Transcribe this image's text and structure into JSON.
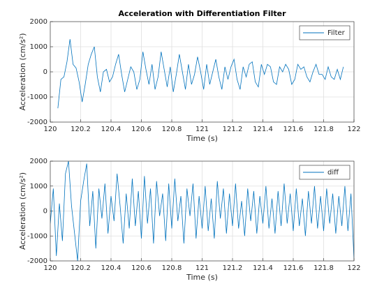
{
  "chart_data": [
    {
      "type": "line",
      "title": "Acceleration with Differentiation Filter",
      "xlabel": "Time (s)",
      "ylabel": "Acceleration (cm/s²)",
      "x": [
        120.05,
        120.07,
        120.09,
        120.11,
        120.13,
        120.15,
        120.17,
        120.19,
        120.21,
        120.23,
        120.25,
        120.27,
        120.29,
        120.31,
        120.33,
        120.35,
        120.37,
        120.39,
        120.41,
        120.43,
        120.45,
        120.47,
        120.49,
        120.51,
        120.53,
        120.55,
        120.57,
        120.59,
        120.61,
        120.63,
        120.65,
        120.67,
        120.69,
        120.71,
        120.73,
        120.75,
        120.77,
        120.79,
        120.81,
        120.83,
        120.85,
        120.87,
        120.89,
        120.91,
        120.93,
        120.95,
        120.97,
        120.99,
        121.01,
        121.03,
        121.05,
        121.07,
        121.09,
        121.11,
        121.13,
        121.15,
        121.17,
        121.19,
        121.21,
        121.23,
        121.25,
        121.27,
        121.29,
        121.31,
        121.33,
        121.35,
        121.37,
        121.39,
        121.41,
        121.43,
        121.45,
        121.47,
        121.49,
        121.51,
        121.53,
        121.55,
        121.57,
        121.59,
        121.61,
        121.63,
        121.65,
        121.67,
        121.69,
        121.71,
        121.73,
        121.75,
        121.77,
        121.79,
        121.81,
        121.83,
        121.85,
        121.87,
        121.89,
        121.91,
        121.93
      ],
      "series": [
        {
          "name": "Filter",
          "color": "#0072bd",
          "values": [
            -1450,
            -300,
            -200,
            400,
            1300,
            300,
            150,
            -400,
            -1200,
            -500,
            300,
            700,
            1000,
            -200,
            -800,
            0,
            100,
            -400,
            -200,
            300,
            700,
            -100,
            -800,
            -300,
            200,
            0,
            -700,
            -300,
            800,
            100,
            -500,
            300,
            -700,
            -200,
            800,
            100,
            -600,
            200,
            -800,
            -100,
            700,
            0,
            -700,
            300,
            -500,
            -100,
            600,
            0,
            -700,
            300,
            -500,
            0,
            500,
            -200,
            -700,
            200,
            -300,
            200,
            500,
            -300,
            -700,
            200,
            -200,
            300,
            400,
            -400,
            -600,
            300,
            -100,
            300,
            200,
            -400,
            -500,
            200,
            0,
            300,
            100,
            -500,
            -300,
            300,
            100,
            200,
            -200,
            -400,
            0,
            300,
            -100,
            -100,
            -300,
            200,
            -200,
            -300,
            100,
            -300,
            200
          ]
        }
      ],
      "xlim": [
        120,
        122
      ],
      "xticks": [
        120,
        120.2,
        120.4,
        120.6,
        120.8,
        121,
        121.2,
        121.4,
        121.6,
        121.8,
        122
      ],
      "ylim": [
        -2000,
        2000
      ],
      "yticks": [
        -2000,
        -1000,
        0,
        1000,
        2000
      ],
      "grid": true,
      "legend": "northeast"
    },
    {
      "type": "line",
      "xlabel": "Time (s)",
      "ylabel": "Acceleration (cm/s²)",
      "x": [
        120,
        120.02,
        120.04,
        120.06,
        120.08,
        120.1,
        120.12,
        120.14,
        120.16,
        120.18,
        120.2,
        120.22,
        120.24,
        120.26,
        120.28,
        120.3,
        120.32,
        120.34,
        120.36,
        120.38,
        120.4,
        120.42,
        120.44,
        120.46,
        120.48,
        120.5,
        120.52,
        120.54,
        120.56,
        120.58,
        120.6,
        120.62,
        120.64,
        120.66,
        120.68,
        120.7,
        120.72,
        120.74,
        120.76,
        120.78,
        120.8,
        120.82,
        120.84,
        120.86,
        120.88,
        120.9,
        120.92,
        120.94,
        120.96,
        120.98,
        121,
        121.02,
        121.04,
        121.06,
        121.08,
        121.1,
        121.12,
        121.14,
        121.16,
        121.18,
        121.2,
        121.22,
        121.24,
        121.26,
        121.28,
        121.3,
        121.32,
        121.34,
        121.36,
        121.38,
        121.4,
        121.42,
        121.44,
        121.46,
        121.48,
        121.5,
        121.52,
        121.54,
        121.56,
        121.58,
        121.6,
        121.62,
        121.64,
        121.66,
        121.68,
        121.7,
        121.72,
        121.74,
        121.76,
        121.78,
        121.8,
        121.82,
        121.84,
        121.86,
        121.88,
        121.9,
        121.92,
        121.94,
        121.96,
        121.98,
        122
      ],
      "series": [
        {
          "name": "diff",
          "color": "#0072bd",
          "values": [
            -500,
            900,
            -1800,
            300,
            -1200,
            1500,
            2000,
            200,
            -900,
            -2000,
            400,
            1200,
            1900,
            -600,
            800,
            -1500,
            900,
            -300,
            1100,
            -900,
            600,
            -400,
            1500,
            200,
            -1300,
            700,
            -700,
            1300,
            -600,
            800,
            -1100,
            1400,
            -500,
            900,
            -1300,
            1200,
            -200,
            700,
            -1200,
            1100,
            -700,
            1300,
            -400,
            600,
            -1300,
            900,
            -200,
            1100,
            -1100,
            600,
            -700,
            1000,
            -800,
            500,
            -1100,
            1200,
            -300,
            900,
            -900,
            700,
            -600,
            1100,
            -700,
            400,
            -1000,
            900,
            -400,
            800,
            -900,
            600,
            -500,
            1000,
            -700,
            500,
            -900,
            800,
            -600,
            1100,
            -500,
            700,
            -800,
            900,
            -600,
            500,
            -1000,
            800,
            -500,
            1000,
            -700,
            600,
            -800,
            900,
            -500,
            700,
            -900,
            600,
            -600,
            1000,
            -800,
            700,
            -1900
          ]
        }
      ],
      "xlim": [
        120,
        122
      ],
      "xticks": [
        120,
        120.2,
        120.4,
        120.6,
        120.8,
        121,
        121.2,
        121.4,
        121.6,
        121.8,
        122
      ],
      "ylim": [
        -2000,
        2000
      ],
      "yticks": [
        -2000,
        -1000,
        0,
        1000,
        2000
      ],
      "grid": true,
      "legend": "northeast"
    }
  ]
}
